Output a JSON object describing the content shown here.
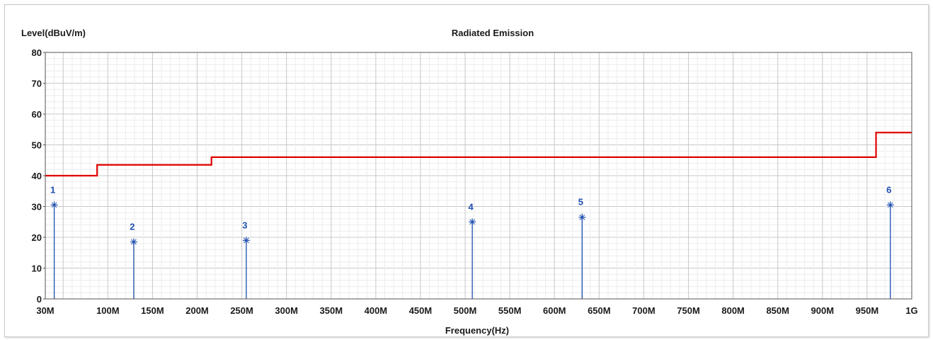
{
  "chart_data": {
    "type": "line",
    "title": "Radiated Emission",
    "ylabel": "Level(dBuV/m)",
    "xlabel": "Frequency(Hz)",
    "xlim": [
      30,
      1000
    ],
    "ylim": [
      0,
      80
    ],
    "grid": true,
    "x_ticks": [
      {
        "value": 30,
        "label": "30M"
      },
      {
        "value": 100,
        "label": "100M"
      },
      {
        "value": 150,
        "label": "150M"
      },
      {
        "value": 200,
        "label": "200M"
      },
      {
        "value": 250,
        "label": "250M"
      },
      {
        "value": 300,
        "label": "300M"
      },
      {
        "value": 350,
        "label": "350M"
      },
      {
        "value": 400,
        "label": "400M"
      },
      {
        "value": 450,
        "label": "450M"
      },
      {
        "value": 500,
        "label": "500M"
      },
      {
        "value": 550,
        "label": "550M"
      },
      {
        "value": 600,
        "label": "600M"
      },
      {
        "value": 650,
        "label": "650M"
      },
      {
        "value": 700,
        "label": "700M"
      },
      {
        "value": 750,
        "label": "750M"
      },
      {
        "value": 800,
        "label": "800M"
      },
      {
        "value": 850,
        "label": "850M"
      },
      {
        "value": 900,
        "label": "900M"
      },
      {
        "value": 950,
        "label": "950M"
      },
      {
        "value": 1000,
        "label": "1G"
      }
    ],
    "y_ticks": [
      0,
      10,
      20,
      30,
      40,
      50,
      60,
      70,
      80
    ],
    "limit_line": {
      "color": "#e00000",
      "points": [
        [
          30,
          40
        ],
        [
          88,
          40
        ],
        [
          88,
          43.5
        ],
        [
          216,
          43.5
        ],
        [
          216,
          46
        ],
        [
          960,
          46
        ],
        [
          960,
          54
        ],
        [
          1000,
          54
        ]
      ]
    },
    "markers": {
      "color": "#1f4fb0",
      "points": [
        {
          "label": "1",
          "x": 40,
          "y": 30.5
        },
        {
          "label": "2",
          "x": 129,
          "y": 18.5
        },
        {
          "label": "3",
          "x": 255,
          "y": 19.0
        },
        {
          "label": "4",
          "x": 508,
          "y": 25.0
        },
        {
          "label": "5",
          "x": 631,
          "y": 26.5
        },
        {
          "label": "6",
          "x": 976,
          "y": 30.5
        }
      ]
    }
  }
}
